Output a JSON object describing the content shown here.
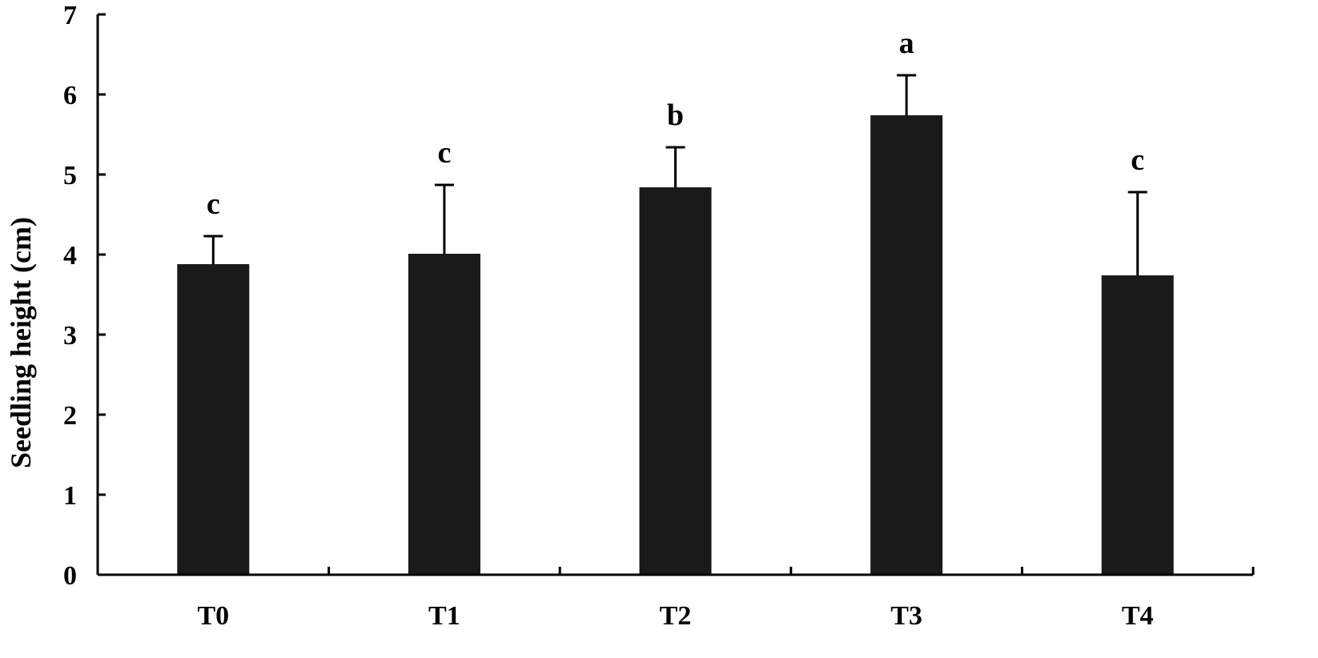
{
  "chart_data": {
    "type": "bar",
    "title": "",
    "xlabel": "",
    "ylabel": "Seedling height (cm)",
    "ylim": [
      0,
      7
    ],
    "yticks": [
      "0",
      "1",
      "2",
      "3",
      "4",
      "5",
      "6",
      "7"
    ],
    "grid": false,
    "legend": "none",
    "bar_color": "#1a1a1a",
    "categories": [
      "T0",
      "T1",
      "T2",
      "T3",
      "T4"
    ],
    "values": [
      3.88,
      4.01,
      4.84,
      5.74,
      3.74
    ],
    "errors": [
      0.35,
      0.86,
      0.5,
      0.5,
      1.04
    ],
    "significance": [
      "c",
      "c",
      "b",
      "a",
      "c"
    ]
  }
}
